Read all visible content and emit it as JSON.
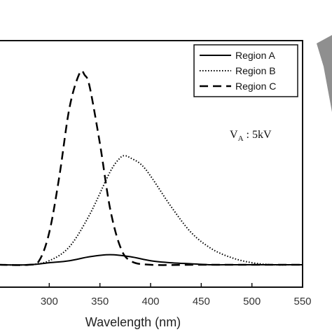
{
  "chart_data": {
    "type": "line",
    "title": "",
    "xlabel": "Wavelength (nm)",
    "ylabel": "",
    "xlim": [
      250,
      550
    ],
    "ylim": [
      0,
      1.0
    ],
    "x_ticks": [
      300,
      350,
      400,
      450,
      500,
      550
    ],
    "grid": false,
    "legend_position": "top-right",
    "annotation": {
      "base": "V",
      "subscript": "A",
      "rest": " : 5kV"
    },
    "series": [
      {
        "name": "Region A",
        "line_style": "solid",
        "color": "#000000",
        "x": [
          250,
          280,
          300,
          320,
          340,
          360,
          380,
          400,
          420,
          440,
          460,
          480,
          500,
          520,
          540,
          550
        ],
        "y": [
          0.0,
          0.0,
          0.01,
          0.02,
          0.04,
          0.05,
          0.04,
          0.02,
          0.01,
          0.005,
          0.0,
          0.0,
          0.0,
          0.0,
          0.0,
          0.0
        ]
      },
      {
        "name": "Region B",
        "line_style": "dotted",
        "color": "#000000",
        "x": [
          250,
          280,
          300,
          320,
          340,
          360,
          370,
          375,
          380,
          390,
          400,
          420,
          440,
          460,
          480,
          500,
          520,
          540,
          550
        ],
        "y": [
          0.0,
          0.0,
          0.02,
          0.09,
          0.25,
          0.46,
          0.53,
          0.54,
          0.53,
          0.5,
          0.44,
          0.29,
          0.16,
          0.08,
          0.035,
          0.01,
          0.0,
          0.0,
          0.0
        ]
      },
      {
        "name": "Region C",
        "line_style": "dashed",
        "color": "#000000",
        "x": [
          250,
          280,
          290,
          300,
          310,
          320,
          330,
          335,
          340,
          350,
          360,
          370,
          380,
          400,
          450,
          550
        ],
        "y": [
          0.0,
          0.0,
          0.02,
          0.16,
          0.44,
          0.78,
          0.95,
          0.94,
          0.88,
          0.6,
          0.28,
          0.09,
          0.02,
          0.0,
          0.0,
          0.0
        ]
      }
    ]
  }
}
